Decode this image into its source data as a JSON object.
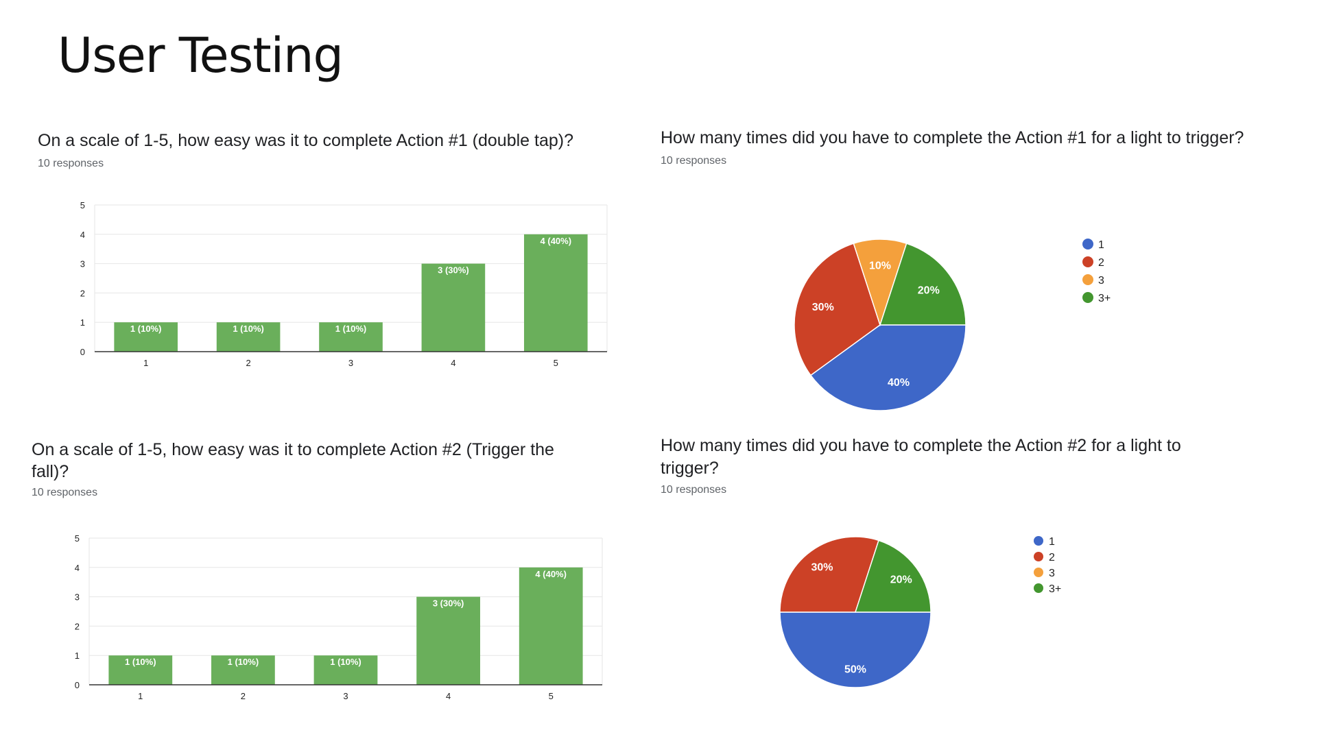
{
  "slide": {
    "title": "User Testing"
  },
  "colors": {
    "bar": "#6aaf5b",
    "grid": "#e6e6e6",
    "axis": "#333333"
  },
  "panels": [
    {
      "title": "On a scale of 1-5, how easy was it to complete Action #1 (double tap)?",
      "responses": "10 responses"
    },
    {
      "title": "How many times did you have to complete the Action #1 for a light to trigger?",
      "responses": "10 responses"
    },
    {
      "title": "On a scale of 1-5, how easy was it to complete Action #2 (Trigger the fall)?",
      "responses": "10 responses"
    },
    {
      "title": "How many times did you have to complete the Action #2 for a light to trigger?",
      "responses": "10 responses"
    }
  ],
  "chart_data": [
    {
      "type": "bar",
      "categories": [
        "1",
        "2",
        "3",
        "4",
        "5"
      ],
      "values": [
        1,
        1,
        1,
        3,
        4
      ],
      "data_labels": [
        "1 (10%)",
        "1 (10%)",
        "1 (10%)",
        "3 (30%)",
        "4 (40%)"
      ],
      "y_ticks": [
        "0",
        "1",
        "2",
        "3",
        "4",
        "5"
      ],
      "ylim": [
        0,
        5
      ],
      "grid": true
    },
    {
      "type": "pie",
      "legend": "right",
      "slices": [
        {
          "label": "1",
          "value": 40,
          "data_label": "40%",
          "color": "#3e67c8"
        },
        {
          "label": "2",
          "value": 30,
          "data_label": "30%",
          "color": "#cc4126"
        },
        {
          "label": "3",
          "value": 10,
          "data_label": "10%",
          "color": "#f4a03c"
        },
        {
          "label": "3+",
          "value": 20,
          "data_label": "20%",
          "color": "#43962f"
        }
      ]
    },
    {
      "type": "bar",
      "categories": [
        "1",
        "2",
        "3",
        "4",
        "5"
      ],
      "values": [
        1,
        1,
        1,
        3,
        4
      ],
      "data_labels": [
        "1 (10%)",
        "1 (10%)",
        "1 (10%)",
        "3 (30%)",
        "4 (40%)"
      ],
      "y_ticks": [
        "0",
        "1",
        "2",
        "3",
        "4",
        "5"
      ],
      "ylim": [
        0,
        5
      ],
      "grid": true
    },
    {
      "type": "pie",
      "legend": "right",
      "slices": [
        {
          "label": "1",
          "value": 50,
          "data_label": "50%",
          "color": "#3e67c8"
        },
        {
          "label": "2",
          "value": 30,
          "data_label": "30%",
          "color": "#cc4126"
        },
        {
          "label": "3",
          "value": 0,
          "data_label": "",
          "color": "#f4a03c"
        },
        {
          "label": "3+",
          "value": 20,
          "data_label": "20%",
          "color": "#43962f"
        }
      ]
    }
  ]
}
